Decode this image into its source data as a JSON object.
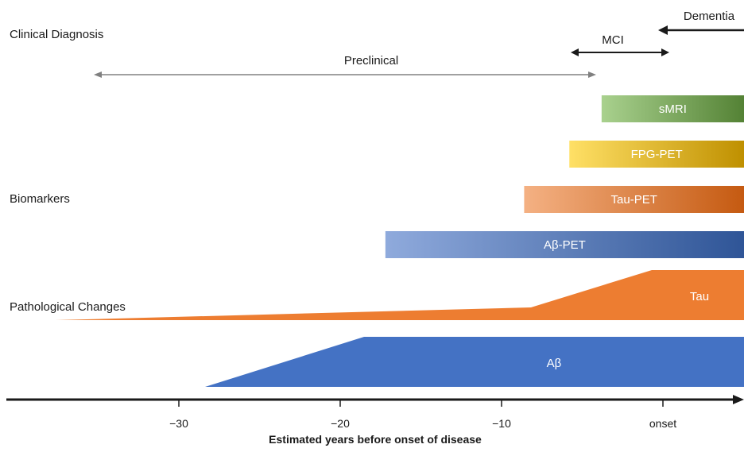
{
  "sections": {
    "clinical_diagnosis": "Clinical Diagnosis",
    "biomarkers": "Biomarkers",
    "pathological_changes": "Pathological Changes"
  },
  "stages": {
    "preclinical": "Preclinical",
    "mci": "MCI",
    "dementia": "Dementia"
  },
  "biomarker_bars": [
    {
      "label": "sMRI",
      "start": -3.8,
      "color_light": "#a9d18e",
      "color_dark": "#548235"
    },
    {
      "label": "FPG-PET",
      "start": -5.8,
      "color_light": "#ffe066",
      "color_dark": "#bf9000"
    },
    {
      "label": "Tau-PET",
      "start": -8.6,
      "color_light": "#f4b183",
      "color_dark": "#c55a11"
    },
    {
      "label": "Aβ-PET",
      "start": -17.2,
      "color_light": "#8faadc",
      "color_dark": "#2f5597"
    }
  ],
  "pathology": {
    "tau": {
      "label": "Tau",
      "color": "#ed7d31"
    },
    "abeta": {
      "label": "Aβ",
      "color": "#4472c4"
    }
  },
  "axis": {
    "title": "Estimated years before onset of disease",
    "ticks": [
      {
        "value": -30,
        "label": "−30"
      },
      {
        "value": -20,
        "label": "−20"
      },
      {
        "value": -10,
        "label": "−10"
      },
      {
        "value": 0,
        "label": "onset"
      }
    ]
  }
}
